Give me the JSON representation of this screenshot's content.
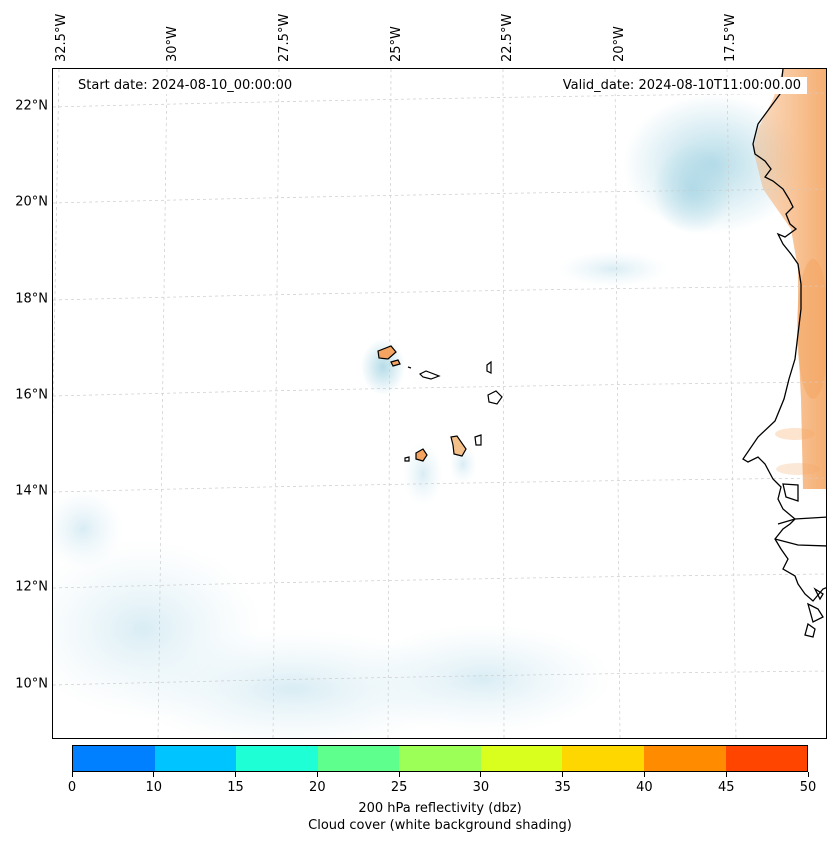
{
  "map": {
    "start_date": "Start date: 2024-08-10_00:00:00",
    "valid_date": "Valid_date: 2024-08-10T11:00:00.00",
    "lat_labels": [
      "22°N",
      "20°N",
      "18°N",
      "16°N",
      "14°N",
      "12°N",
      "10°N"
    ],
    "lon_labels": [
      "32.5°W",
      "30°W",
      "27.5°W",
      "25°W",
      "22.5°W",
      "20°W",
      "17.5°W"
    ],
    "region": "Cabo Verde and West African coast",
    "colors": {
      "coastline": "#000000",
      "gridline": "#cccccc",
      "cloud_shade": "#add8e6",
      "land_reflectivity": "#f4a460"
    }
  },
  "colorbar": {
    "ticks": [
      "0",
      "10",
      "15",
      "20",
      "25",
      "30",
      "35",
      "40",
      "45",
      "50"
    ],
    "colors": [
      "#0080ff",
      "#00c4ff",
      "#1effd6",
      "#5eff8c",
      "#9bff58",
      "#d8ff1e",
      "#ffd700",
      "#ff8c00",
      "#ff4500"
    ],
    "title": "200 hPa reflectivity (dbz)",
    "subtitle": "Cloud cover (white background shading)"
  }
}
